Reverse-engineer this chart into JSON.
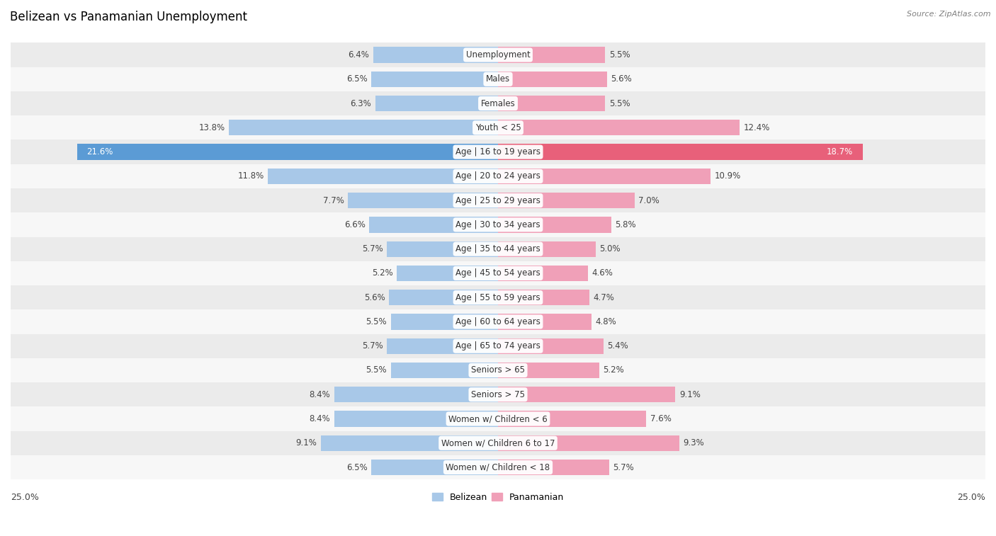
{
  "title": "Belizean vs Panamanian Unemployment",
  "source": "Source: ZipAtlas.com",
  "categories": [
    "Unemployment",
    "Males",
    "Females",
    "Youth < 25",
    "Age | 16 to 19 years",
    "Age | 20 to 24 years",
    "Age | 25 to 29 years",
    "Age | 30 to 34 years",
    "Age | 35 to 44 years",
    "Age | 45 to 54 years",
    "Age | 55 to 59 years",
    "Age | 60 to 64 years",
    "Age | 65 to 74 years",
    "Seniors > 65",
    "Seniors > 75",
    "Women w/ Children < 6",
    "Women w/ Children 6 to 17",
    "Women w/ Children < 18"
  ],
  "belizean": [
    6.4,
    6.5,
    6.3,
    13.8,
    21.6,
    11.8,
    7.7,
    6.6,
    5.7,
    5.2,
    5.6,
    5.5,
    5.7,
    5.5,
    8.4,
    8.4,
    9.1,
    6.5
  ],
  "panamanian": [
    5.5,
    5.6,
    5.5,
    12.4,
    18.7,
    10.9,
    7.0,
    5.8,
    5.0,
    4.6,
    4.7,
    4.8,
    5.4,
    5.2,
    9.1,
    7.6,
    9.3,
    5.7
  ],
  "belizean_color_normal": "#a8c8e8",
  "panamanian_color_normal": "#f0a0b8",
  "belizean_color_highlight": "#5b9bd5",
  "panamanian_color_highlight": "#e8607a",
  "highlight_threshold_bel": 20.0,
  "highlight_threshold_pan": 18.0,
  "row_bg_odd": "#ebebeb",
  "row_bg_even": "#f7f7f7",
  "xlim": 25.0,
  "bar_height": 0.65,
  "label_fontsize": 8.5,
  "value_fontsize": 8.5,
  "title_fontsize": 12,
  "source_fontsize": 8,
  "legend_fontsize": 9
}
